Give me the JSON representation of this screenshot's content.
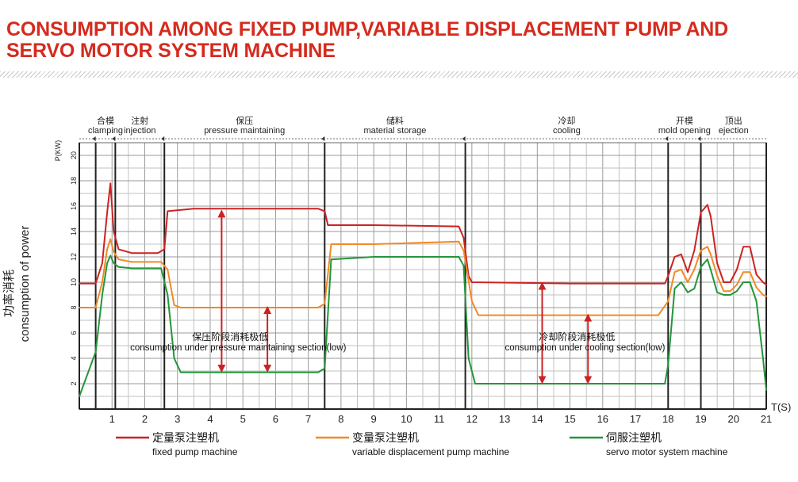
{
  "page_title": "CONSUMPTION AMONG FIXED PUMP,VARIABLE DISPLACEMENT PUMP AND SERVO MOTOR SYSTEM MACHINE",
  "chart_data": {
    "type": "line",
    "title": "",
    "ylabel_cn": "功率消耗",
    "ylabel_en": "consumption of power",
    "ylabel_unit": "P(KW)",
    "xlabel": "T(S)",
    "xlim": [
      0,
      21
    ],
    "ylim": [
      0,
      21
    ],
    "x_ticks": [
      1,
      2,
      3,
      4,
      5,
      6,
      7,
      8,
      9,
      10,
      11,
      12,
      13,
      14,
      15,
      16,
      17,
      18,
      19,
      20,
      21
    ],
    "y_ticks": [
      2,
      4,
      6,
      8,
      10,
      12,
      14,
      16,
      18,
      20
    ],
    "grid": true,
    "phases": [
      {
        "cn": "合模",
        "en": "clamping",
        "start": 0.5,
        "end": 1.1
      },
      {
        "cn": "注射",
        "en": "injection",
        "start": 1.1,
        "end": 2.6
      },
      {
        "cn": "保压",
        "en": "pressure maintaining",
        "start": 2.6,
        "end": 7.5
      },
      {
        "cn": "储料",
        "en": "material storage",
        "start": 7.5,
        "end": 11.8
      },
      {
        "cn": "冷却",
        "en": "cooling",
        "start": 11.8,
        "end": 18.0
      },
      {
        "cn": "开模",
        "en": "mold opening",
        "start": 18.0,
        "end": 19.0
      },
      {
        "cn": "顶出",
        "en": "ejection",
        "start": 19.0,
        "end": 21.0
      }
    ],
    "series": [
      {
        "name_cn": "定量泵注塑机",
        "name_en": "fixed pump machine",
        "color": "#cc2222",
        "x": [
          0,
          0.5,
          0.7,
          0.85,
          0.95,
          1.05,
          1.2,
          1.6,
          2.4,
          2.6,
          2.7,
          3.5,
          6,
          7.3,
          7.5,
          7.6,
          9,
          11.6,
          11.75,
          11.9,
          12,
          15,
          17.9,
          18.0,
          18.2,
          18.4,
          18.6,
          18.8,
          19.0,
          19.2,
          19.3,
          19.5,
          19.7,
          19.9,
          20.1,
          20.3,
          20.5,
          20.7,
          20.9,
          21
        ],
        "y": [
          9.9,
          9.9,
          11.5,
          15.5,
          17.8,
          14,
          12.6,
          12.3,
          12.3,
          12.6,
          15.6,
          15.8,
          15.8,
          15.8,
          15.6,
          14.5,
          14.5,
          14.4,
          13.5,
          10.5,
          10.0,
          9.9,
          9.9,
          10.5,
          12.0,
          12.2,
          10.8,
          12.5,
          15.5,
          16.1,
          15.2,
          11.5,
          10.0,
          10.0,
          11.0,
          12.8,
          12.8,
          10.6,
          10.0,
          9.8
        ]
      },
      {
        "name_cn": "变量泵注塑机",
        "name_en": "variable displacement pump machine",
        "color": "#f08a24",
        "x": [
          0,
          0.5,
          0.7,
          0.85,
          0.95,
          1.05,
          1.2,
          1.6,
          2.5,
          2.7,
          2.9,
          3.1,
          5,
          7.3,
          7.5,
          7.7,
          9,
          11.6,
          11.75,
          12,
          12.2,
          15,
          17.7,
          18.0,
          18.2,
          18.4,
          18.6,
          18.8,
          19.0,
          19.2,
          19.3,
          19.5,
          19.7,
          19.9,
          20.1,
          20.3,
          20.5,
          20.7,
          20.9,
          21
        ],
        "y": [
          8.0,
          8.0,
          10,
          12.6,
          13.4,
          12.4,
          11.8,
          11.6,
          11.6,
          11,
          8.2,
          8.0,
          8.0,
          8.0,
          8.3,
          13.0,
          13.0,
          13.2,
          12.5,
          8.5,
          7.4,
          7.4,
          7.4,
          8.5,
          10.8,
          11.0,
          10.0,
          11.0,
          12.5,
          12.8,
          12.2,
          10.5,
          9.3,
          9.3,
          9.8,
          10.8,
          10.8,
          9.6,
          9.0,
          8.9
        ]
      },
      {
        "name_cn": "伺服注塑机",
        "name_en": "servo motor system machine",
        "color": "#22963a",
        "x": [
          0,
          0.5,
          0.7,
          0.85,
          0.95,
          1.05,
          1.2,
          1.6,
          2.5,
          2.7,
          2.9,
          3.1,
          5,
          7.3,
          7.5,
          7.7,
          9,
          11.6,
          11.75,
          11.9,
          12.1,
          15,
          17.9,
          18.0,
          18.2,
          18.4,
          18.6,
          18.8,
          19.0,
          19.2,
          19.3,
          19.5,
          19.7,
          19.9,
          20.1,
          20.3,
          20.5,
          20.7,
          20.9,
          21
        ],
        "y": [
          1.0,
          4.5,
          9,
          11.5,
          12.1,
          11.5,
          11.2,
          11.1,
          11.1,
          9,
          4,
          2.9,
          2.9,
          2.9,
          3.2,
          11.8,
          12.0,
          12.0,
          11.3,
          4,
          2.0,
          2.0,
          2.0,
          3.5,
          9.5,
          10.0,
          9.2,
          9.5,
          11.2,
          11.8,
          11.0,
          9.2,
          9.0,
          9.0,
          9.3,
          10.0,
          10.0,
          8.5,
          4,
          1.5
        ]
      }
    ],
    "annotations": [
      {
        "cn": "保压阶段消耗极低",
        "en": "consumption under pressure maintaining section(low)",
        "x": 5.1,
        "y": 4.8
      },
      {
        "cn": "冷却阶段消耗极低",
        "en": "consumption under cooling section(low)",
        "x": 15.7,
        "y": 4.8
      }
    ],
    "arrows": [
      {
        "x": 4.35,
        "from": 6.5,
        "to": 15.6
      },
      {
        "x": 4.35,
        "from": 6.5,
        "to": 3.0
      },
      {
        "x": 5.75,
        "from": 6.5,
        "to": 8.0
      },
      {
        "x": 5.75,
        "from": 6.5,
        "to": 3.0
      },
      {
        "x": 14.15,
        "from": 6.5,
        "to": 9.9
      },
      {
        "x": 14.15,
        "from": 6.5,
        "to": 2.1
      },
      {
        "x": 15.55,
        "from": 6.5,
        "to": 7.4
      },
      {
        "x": 15.55,
        "from": 6.5,
        "to": 2.1
      }
    ]
  }
}
